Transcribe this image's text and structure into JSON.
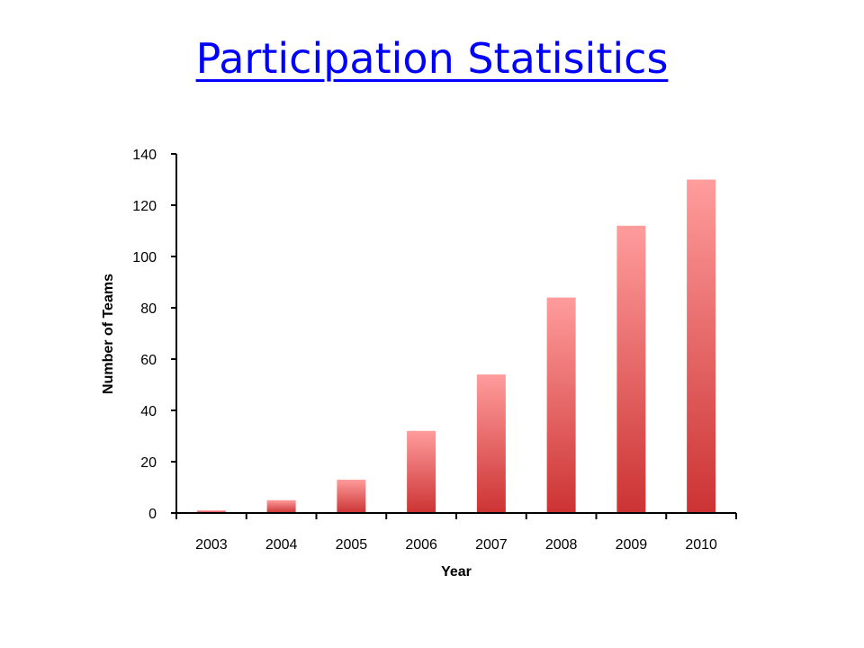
{
  "slide": {
    "title": "Participation Statisitics"
  },
  "colors": {
    "title": "#0000ff",
    "bar_light": "#ff9c9c",
    "bar_dark": "#cc3333",
    "axis": "#000000"
  },
  "chart_data": {
    "type": "bar",
    "categories": [
      "2003",
      "2004",
      "2005",
      "2006",
      "2007",
      "2008",
      "2009",
      "2010"
    ],
    "values": [
      1,
      5,
      13,
      32,
      54,
      84,
      112,
      130
    ],
    "xlabel": "Year",
    "ylabel": "Number of Teams",
    "ylim": [
      0,
      140
    ],
    "yticks": [
      0,
      20,
      40,
      60,
      80,
      100,
      120,
      140
    ],
    "grid": false,
    "legend": "none"
  }
}
